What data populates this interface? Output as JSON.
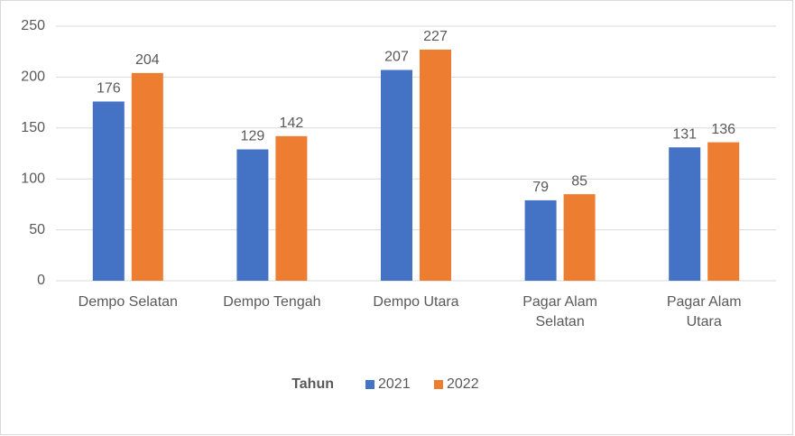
{
  "chart_data": {
    "type": "bar",
    "categories": [
      "Dempo Selatan",
      "Dempo Tengah",
      "Dempo Utara",
      "Pagar Alam Selatan",
      "Pagar Alam Utara"
    ],
    "series": [
      {
        "name": "2021",
        "color": "#4472c4",
        "values": [
          176,
          129,
          207,
          79,
          131
        ]
      },
      {
        "name": "2022",
        "color": "#ed7d31",
        "values": [
          204,
          142,
          227,
          85,
          136
        ]
      }
    ],
    "legend_title": "Tahun",
    "ylim": [
      0,
      250
    ],
    "yticks": [
      0,
      50,
      100,
      150,
      200,
      250
    ],
    "grid": true,
    "legend": "bottom"
  }
}
